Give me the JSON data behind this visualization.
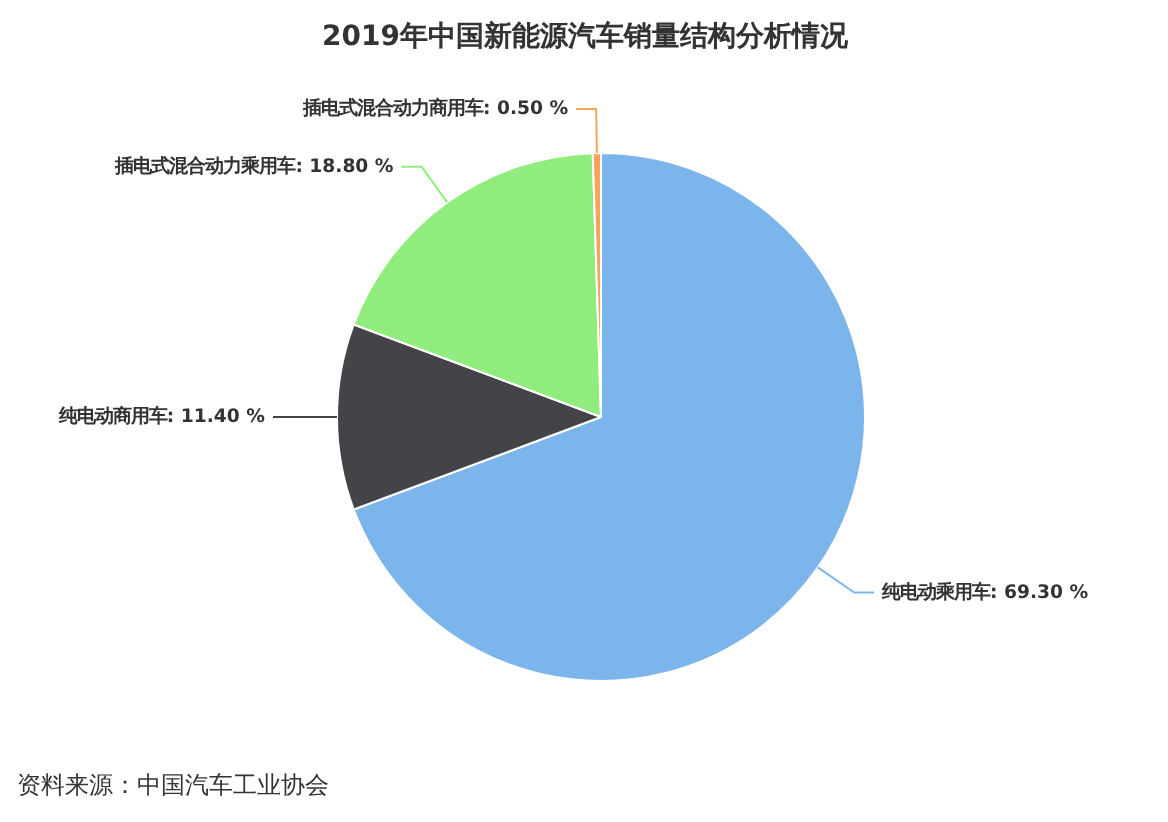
{
  "chart_data": {
    "type": "pie",
    "title": "2019年中国新能源汽车销量结构分析情况",
    "categories": [
      "纯电动乘用车",
      "纯电动商用车",
      "插电式混合动力乘用车",
      "插电式混合动力商用车"
    ],
    "values": [
      69.3,
      11.4,
      18.8,
      0.5
    ],
    "value_labels": [
      "69.30 %",
      "11.40 %",
      "18.80 %",
      "0.50 %"
    ],
    "colors": [
      "#7cb5ec",
      "#434348",
      "#90ed7d",
      "#f7a35c"
    ],
    "annotations": [
      "资料来源：中国汽车工业协会"
    ]
  }
}
